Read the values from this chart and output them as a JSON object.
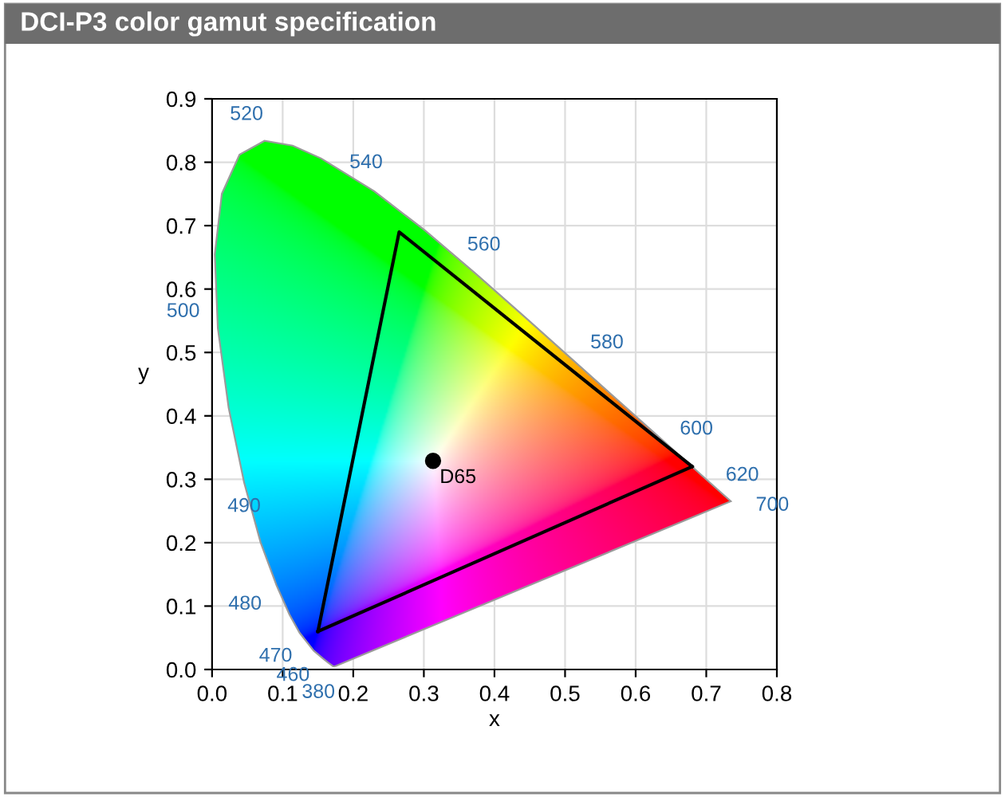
{
  "chart_data": {
    "type": "line",
    "title": "DCI-P3 color gamut specification",
    "xlabel": "x",
    "ylabel": "y",
    "xlim": [
      0,
      0.8
    ],
    "ylim": [
      0,
      0.9
    ],
    "xticks": [
      {
        "value": 0,
        "label": "0.0"
      },
      0.1,
      0.2,
      0.3,
      0.4,
      0.5,
      0.6,
      0.7,
      0.8
    ],
    "yticks": [
      {
        "value": 0,
        "label": "0.0"
      },
      0.1,
      0.2,
      0.3,
      0.4,
      0.5,
      0.6,
      0.7,
      0.8,
      0.9
    ],
    "grid": true,
    "legend": false,
    "series": [
      {
        "color": "#000000",
        "x": [
          0.15,
          0.265,
          0.68
        ],
        "values": [
          0.06,
          0.69,
          0.32
        ]
      },
      {
        "color": "#000000",
        "x": [
          0.15,
          0.68
        ],
        "values": [
          0.06,
          0.32
        ]
      },
      {
        "type": "scatter",
        "name": "D65",
        "color": "#000000",
        "marker": "circle",
        "x": [
          0.313
        ],
        "values": [
          0.329
        ]
      }
    ],
    "annotations": [
      "380",
      "460",
      "470",
      "480",
      "490",
      "500",
      "520",
      "540",
      "560",
      "580",
      "600",
      "620",
      "700"
    ]
  }
}
